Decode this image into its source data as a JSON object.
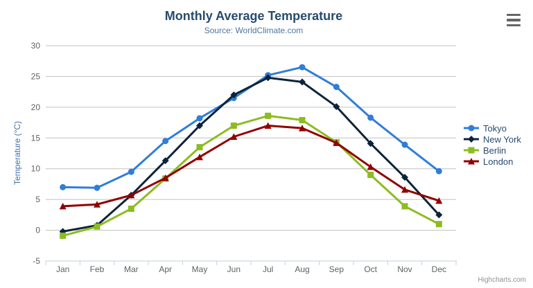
{
  "chart": {
    "credit": "Highcharts.com",
    "export_menu": "context-menu"
  },
  "chart_data": {
    "type": "line",
    "title": "Monthly Average Temperature",
    "subtitle": "Source: WorldClimate.com",
    "xlabel": "",
    "ylabel": "Temperature (°C)",
    "categories": [
      "Jan",
      "Feb",
      "Mar",
      "Apr",
      "May",
      "Jun",
      "Jul",
      "Aug",
      "Sep",
      "Oct",
      "Nov",
      "Dec"
    ],
    "series": [
      {
        "name": "Tokyo",
        "marker": "circle",
        "color": "#2f7ed8",
        "values": [
          7.0,
          6.9,
          9.5,
          14.5,
          18.2,
          21.5,
          25.2,
          26.5,
          23.3,
          18.3,
          13.9,
          9.6
        ]
      },
      {
        "name": "New York",
        "marker": "diamond",
        "color": "#0d233a",
        "values": [
          -0.2,
          0.8,
          5.7,
          11.3,
          17.0,
          22.0,
          24.8,
          24.1,
          20.1,
          14.1,
          8.6,
          2.5
        ]
      },
      {
        "name": "Berlin",
        "marker": "square",
        "color": "#8bbc21",
        "values": [
          -0.9,
          0.6,
          3.5,
          8.4,
          13.5,
          17.0,
          18.6,
          17.9,
          14.3,
          9.0,
          3.9,
          1.0
        ]
      },
      {
        "name": "London",
        "marker": "triangle",
        "color": "#910000",
        "values": [
          3.9,
          4.2,
          5.7,
          8.5,
          11.9,
          15.2,
          17.0,
          16.6,
          14.2,
          10.3,
          6.6,
          4.8
        ]
      }
    ],
    "ylim": [
      -5,
      30
    ],
    "yticks": [
      -5,
      0,
      5,
      10,
      15,
      20,
      25,
      30
    ],
    "grid": true,
    "legend_position": "right"
  },
  "colors": {
    "title": "#274b6d",
    "subtitle": "#4d759e",
    "axis_label": "#606060",
    "yaxis_title": "#4572a7",
    "gridline": "#c0c0c0",
    "axis_line": "#c0d0e0",
    "legend_text": "#274b6d",
    "credit": "#909090",
    "menu_icon": "#666666",
    "background": "#ffffff"
  }
}
